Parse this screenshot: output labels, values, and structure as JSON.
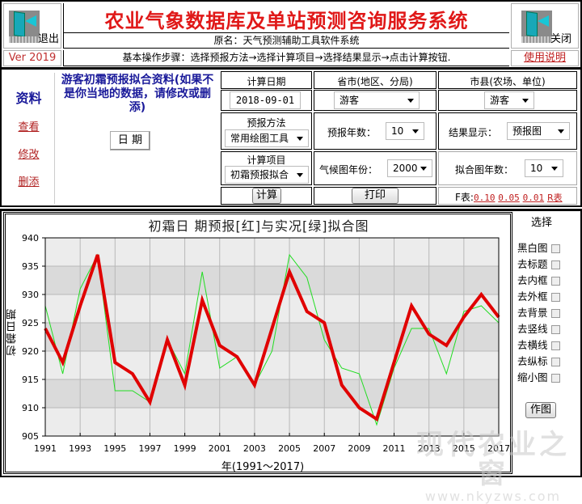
{
  "header": {
    "title": "农业气象数据库及单站预测咨询服务系统",
    "original_name": "原名：天气预测辅助工具软件系统",
    "steps": "基本操作步骤：选择预报方法→选择计算项目→选择结果显示→点击计算按钮.",
    "exit_label": "退出",
    "close_label": "关闭",
    "version": "Ver 2019",
    "help_label": "使用说明",
    "exit_icon": "door-exit-icon",
    "close_icon": "door-exit-icon"
  },
  "sidebar": {
    "title": "资料",
    "links": [
      {
        "label": "查看"
      },
      {
        "label": "修改"
      },
      {
        "label": "删添"
      }
    ]
  },
  "info": {
    "text": "游客初霜预报拟合资料(如果不是你当地的数据，请修改或删添)",
    "date_button": "日  期"
  },
  "controls": {
    "calc_date_label": "计算日期",
    "calc_date_value": "2018-09-01",
    "province_label": "省市(地区、分局)",
    "province_value": "游客",
    "county_label": "市县(农场、单位)",
    "county_value": "游客",
    "method_label": "预报方法",
    "method_value": "常用绘图工具",
    "forecast_years_label": "预报年数：",
    "forecast_years_value": "10",
    "result_display_label": "结果显示：",
    "result_display_value": "预报图",
    "item_label": "计算项目",
    "item_value": "初霜预报拟合",
    "climate_year_label": "气候图年份：",
    "climate_year_value": "2000",
    "fit_years_label": "拟合图年数：",
    "fit_years_value": "10",
    "calc_button": "计算",
    "print_button": "打印",
    "f_table_label": "F表:",
    "f_links": [
      "0.10",
      "0.05",
      "0.01"
    ],
    "r_table_link": "R表"
  },
  "options": {
    "title": "选择",
    "items": [
      {
        "label": "黑白图",
        "checked": false
      },
      {
        "label": "去标题",
        "checked": false
      },
      {
        "label": "去内框",
        "checked": false
      },
      {
        "label": "去外框",
        "checked": false
      },
      {
        "label": "去背景",
        "checked": false
      },
      {
        "label": "去竖线",
        "checked": false
      },
      {
        "label": "去横线",
        "checked": false
      },
      {
        "label": "去纵标",
        "checked": false
      },
      {
        "label": "缩小图",
        "checked": false
      }
    ],
    "draw_button": "作图"
  },
  "watermark": {
    "text": "现代农业之窗",
    "url": "www.nkyzws.com"
  },
  "colors": {
    "title_red": "#e01818",
    "info_blue": "#1a1a9a",
    "link_red": "#c02020",
    "forecast_line": "#e00000",
    "actual_line": "#22dd22",
    "plot_band_light": "#ececec",
    "plot_band_dark": "#dadada"
  },
  "chart_data": {
    "type": "line",
    "title": "初霜日 期预报[红]与实况[绿]拟合图",
    "xlabel": "年(1991～2017)",
    "ylabel": "初霜日期",
    "ylim": [
      905,
      940
    ],
    "yticks": [
      905,
      910,
      915,
      920,
      925,
      930,
      935,
      940
    ],
    "xticks": [
      1991,
      1993,
      1995,
      1997,
      1999,
      2001,
      2003,
      2005,
      2007,
      2009,
      2011,
      2013,
      2015,
      2017
    ],
    "grid": true,
    "x": [
      1991,
      1992,
      1993,
      1994,
      1995,
      1996,
      1997,
      1998,
      1999,
      2000,
      2001,
      2002,
      2003,
      2004,
      2005,
      2006,
      2007,
      2008,
      2009,
      2010,
      2011,
      2012,
      2013,
      2014,
      2015,
      2016,
      2017
    ],
    "series": [
      {
        "name": "预报[红]",
        "color": "#e00000",
        "values": [
          924,
          918,
          928,
          937,
          918,
          916,
          911,
          922,
          914,
          929,
          921,
          919,
          914,
          924,
          934,
          927,
          925,
          914,
          910,
          908,
          918,
          928,
          923,
          921,
          926,
          930,
          926
        ]
      },
      {
        "name": "实况[绿]",
        "color": "#22dd22",
        "values": [
          928,
          916,
          931,
          937,
          913,
          913,
          911,
          922,
          916,
          934,
          917,
          919,
          914,
          920,
          937,
          933,
          922,
          917,
          916,
          907,
          917,
          924,
          924,
          916,
          927,
          928,
          925
        ]
      }
    ]
  }
}
